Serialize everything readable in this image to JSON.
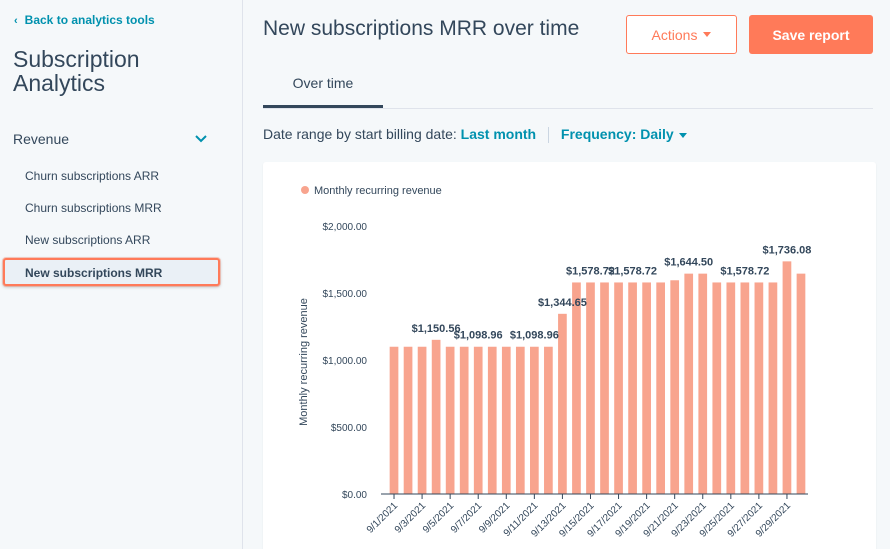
{
  "sidebar": {
    "back_label": "Back to analytics tools",
    "title": "Subscription Analytics",
    "section": "Revenue",
    "items": [
      {
        "label": "Churn subscriptions ARR"
      },
      {
        "label": "Churn subscriptions MRR"
      },
      {
        "label": "New subscriptions ARR"
      },
      {
        "label": "New subscriptions MRR",
        "active": true
      }
    ]
  },
  "header": {
    "title": "New subscriptions MRR over time",
    "actions_label": "Actions",
    "save_label": "Save report"
  },
  "tabs": [
    {
      "label": "Over time",
      "active": true
    }
  ],
  "filters": {
    "date_label": "Date range by start billing date:",
    "date_value": "Last month",
    "frequency_label": "Frequency: Daily"
  },
  "colors": {
    "accent": "#ff7a59",
    "bar": "#f8a48e",
    "link": "#0091ae",
    "text": "#33475b"
  },
  "chart_data": {
    "type": "bar",
    "legend": "Monthly recurring revenue",
    "ylabel": "Monthly recurring revenue",
    "ylim": [
      0,
      2000
    ],
    "yticks": [
      "$0.00",
      "$500.00",
      "$1,000.00",
      "$1,500.00",
      "$2,000.00"
    ],
    "categories": [
      "9/1/2021",
      "9/2/2021",
      "9/3/2021",
      "9/4/2021",
      "9/5/2021",
      "9/6/2021",
      "9/7/2021",
      "9/8/2021",
      "9/9/2021",
      "9/10/2021",
      "9/11/2021",
      "9/12/2021",
      "9/13/2021",
      "9/14/2021",
      "9/15/2021",
      "9/16/2021",
      "9/17/2021",
      "9/18/2021",
      "9/19/2021",
      "9/20/2021",
      "9/21/2021",
      "9/22/2021",
      "9/23/2021",
      "9/24/2021",
      "9/25/2021",
      "9/26/2021",
      "9/27/2021",
      "9/28/2021",
      "9/29/2021",
      "9/30/2021"
    ],
    "xtick_labels": [
      "9/1/2021",
      "9/3/2021",
      "9/5/2021",
      "9/7/2021",
      "9/9/2021",
      "9/11/2021",
      "9/13/2021",
      "9/15/2021",
      "9/17/2021",
      "9/19/2021",
      "9/21/2021",
      "9/23/2021",
      "9/25/2021",
      "9/27/2021",
      "9/29/2021"
    ],
    "values": [
      1098.96,
      1098.96,
      1098.96,
      1150.56,
      1098.96,
      1098.96,
      1098.96,
      1098.96,
      1098.96,
      1098.96,
      1098.96,
      1098.96,
      1344.65,
      1578.72,
      1578.72,
      1578.72,
      1578.72,
      1578.72,
      1578.72,
      1578.72,
      1595,
      1644.5,
      1644.5,
      1578.72,
      1578.72,
      1578.72,
      1578.72,
      1578.72,
      1736.08,
      1644.5
    ],
    "data_labels": [
      {
        "index": 3,
        "text": "$1,150.56"
      },
      {
        "index": 6,
        "text": "$1,098.96"
      },
      {
        "index": 10,
        "text": "$1,098.96"
      },
      {
        "index": 12,
        "text": "$1,344.65"
      },
      {
        "index": 14,
        "text": "$1,578.72"
      },
      {
        "index": 17,
        "text": "$1,578.72"
      },
      {
        "index": 21,
        "text": "$1,644.50"
      },
      {
        "index": 25,
        "text": "$1,578.72"
      },
      {
        "index": 28,
        "text": "$1,736.08"
      }
    ]
  }
}
